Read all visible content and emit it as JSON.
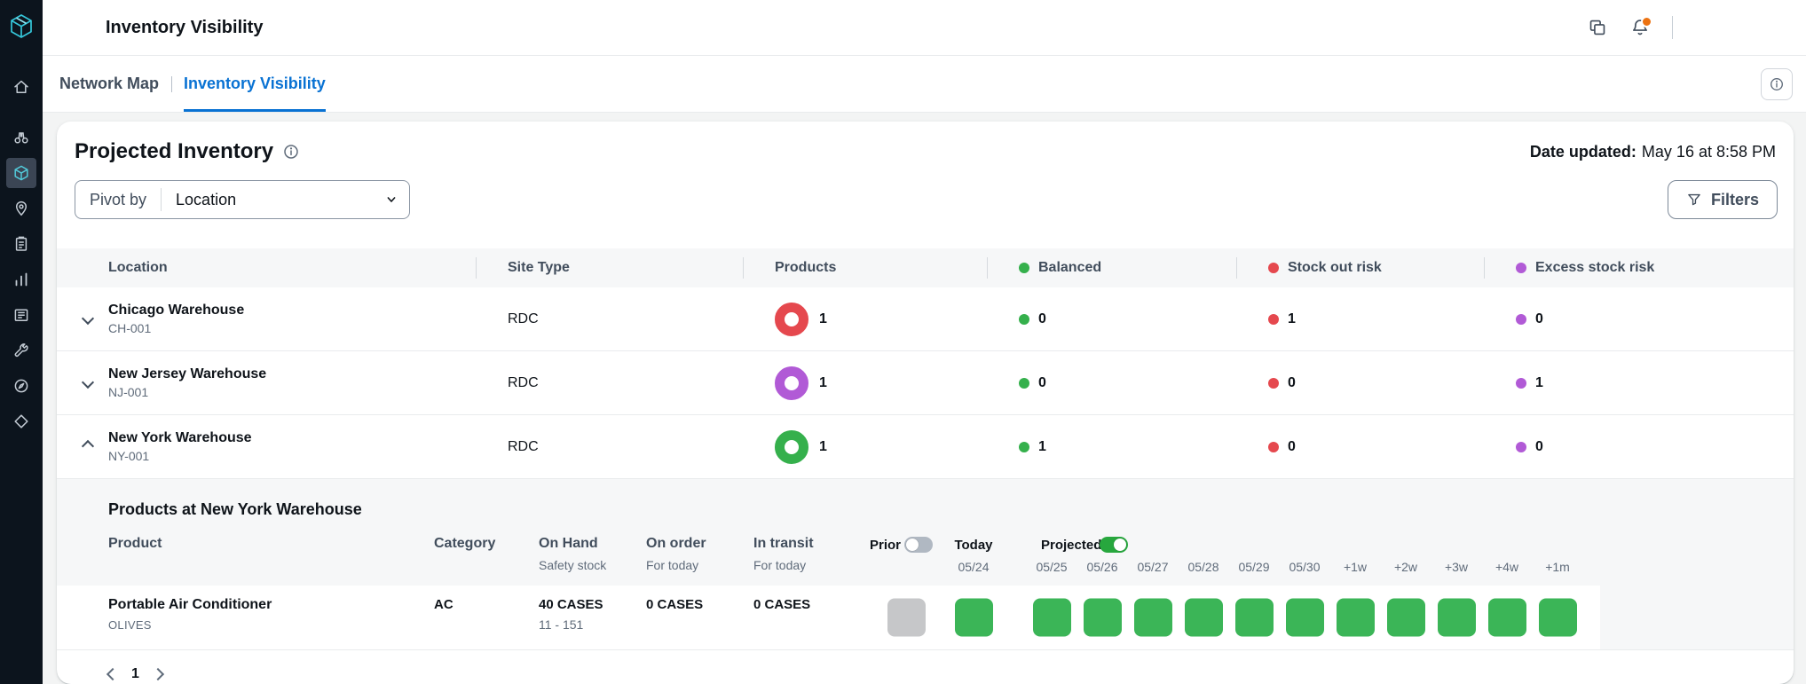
{
  "app": {
    "title": "Inventory Visibility"
  },
  "sidebar": {
    "items": [
      "app-logo",
      "home-icon",
      "binoculars-icon",
      "inventory-icon",
      "location-icon",
      "clipboard-icon",
      "bar-chart-icon",
      "news-icon",
      "tools-icon",
      "compass-icon",
      "integrations-icon"
    ],
    "selected": "inventory-icon"
  },
  "topbar": {
    "icons": [
      "copy-icon",
      "bell-icon"
    ]
  },
  "tabs": [
    {
      "label": "Network Map",
      "active": false
    },
    {
      "label": "Inventory Visibility",
      "active": true
    }
  ],
  "page": {
    "title": "Projected Inventory",
    "date_updated_label": "Date updated:",
    "date_updated_value": "May 16 at 8:58 PM",
    "pivot_label": "Pivot by",
    "pivot_value": "Location",
    "filters_label": "Filters"
  },
  "table": {
    "columns": [
      "Location",
      "Site Type",
      "Products",
      "Balanced",
      "Stock out risk",
      "Excess stock risk"
    ],
    "rows": [
      {
        "name": "Chicago Warehouse",
        "code": "CH-001",
        "site_type": "RDC",
        "products": "1",
        "donut_color": "#e5484e",
        "balanced": "0",
        "stock_out": "1",
        "excess": "0",
        "expanded": false
      },
      {
        "name": "New Jersey Warehouse",
        "code": "NJ-001",
        "site_type": "RDC",
        "products": "1",
        "donut_color": "#b15ad6",
        "balanced": "0",
        "stock_out": "0",
        "excess": "1",
        "expanded": false
      },
      {
        "name": "New York Warehouse",
        "code": "NY-001",
        "site_type": "RDC",
        "products": "1",
        "donut_color": "#35b04c",
        "balanced": "1",
        "stock_out": "0",
        "excess": "0",
        "expanded": true
      }
    ]
  },
  "expanded": {
    "title": "Products at New York Warehouse",
    "sub_columns": [
      {
        "label": "Product",
        "sub": ""
      },
      {
        "label": "Category",
        "sub": ""
      },
      {
        "label": "On Hand",
        "sub": "Safety stock"
      },
      {
        "label": "On order",
        "sub": "For today"
      },
      {
        "label": "In transit",
        "sub": "For today"
      }
    ],
    "prior_label": "Prior",
    "prior_enabled": false,
    "today_label": "Today",
    "today_date": "05/24",
    "projected_label": "Projected",
    "projected_enabled": true,
    "projected_dates": [
      "05/25",
      "05/26",
      "05/27",
      "05/28",
      "05/29",
      "05/30",
      "+1w",
      "+2w",
      "+3w",
      "+4w",
      "+1m"
    ],
    "product": {
      "name": "Portable Air Conditioner",
      "brand": "OLIVES",
      "category": "AC",
      "on_hand": "40 CASES",
      "safety_range": "11 - 151",
      "on_order": "0 CASES",
      "in_transit": "0 CASES"
    },
    "cells": {
      "prior": "cell_gray",
      "today": "cell_green",
      "projected": [
        "cell_green",
        "cell_green",
        "cell_green",
        "cell_green",
        "cell_green",
        "cell_green",
        "cell_green",
        "cell_green",
        "cell_green",
        "cell_green",
        "cell_green"
      ]
    }
  },
  "pagination": {
    "page": "1"
  },
  "colors": {
    "accent": "#0972d3",
    "balanced": "#35b04c",
    "stock_out": "#e5484e",
    "excess": "#b15ad6",
    "cell_green": "#3bb557",
    "cell_gray": "#c6c7c9",
    "toggle_on": "#27a73e",
    "toggle_off": "#b0b8c2",
    "badge_orange": "#ec7211",
    "logo_teal": "#2bbfd4"
  }
}
